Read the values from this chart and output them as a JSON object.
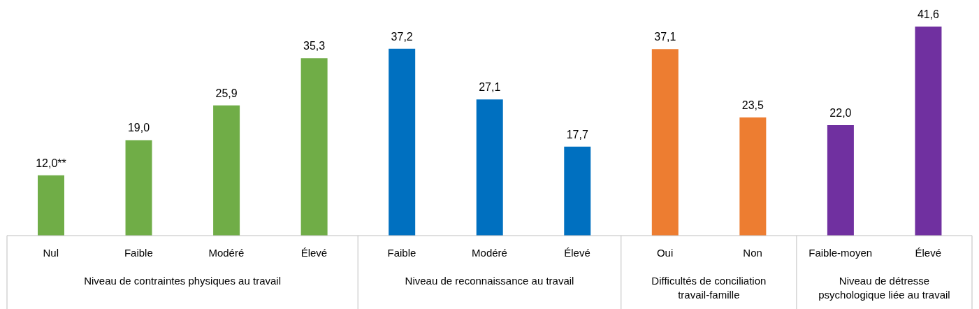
{
  "chart_data": {
    "type": "bar",
    "categories": [
      "Nul",
      "Faible",
      "Modéré",
      "Élevé",
      "Faible",
      "Modéré",
      "Élevé",
      "Oui",
      "Non",
      "Faible-moyen",
      "Élevé"
    ],
    "values": [
      12.0,
      19.0,
      25.9,
      35.3,
      37.2,
      27.1,
      17.7,
      37.1,
      23.5,
      22.0,
      41.6
    ],
    "colors": [
      "#70ad47",
      "#70ad47",
      "#70ad47",
      "#70ad47",
      "#0070c0",
      "#0070c0",
      "#0070c0",
      "#ed7d31",
      "#ed7d31",
      "#7030a0",
      "#7030a0"
    ],
    "value_labels": [
      "12,0**",
      "19,0",
      "25,9",
      "35,3",
      "37,2",
      "27,1",
      "17,7",
      "37,1",
      "23,5",
      "22,0",
      "41,6"
    ],
    "annotations": [
      "Niveau de contraintes physiques au travail",
      "Niveau de reconnaissance au travail",
      "Difficultés de conciliation travail-famille",
      "Niveau de détresse psychologique liée au travail"
    ],
    "grid": false,
    "legend": false
  }
}
